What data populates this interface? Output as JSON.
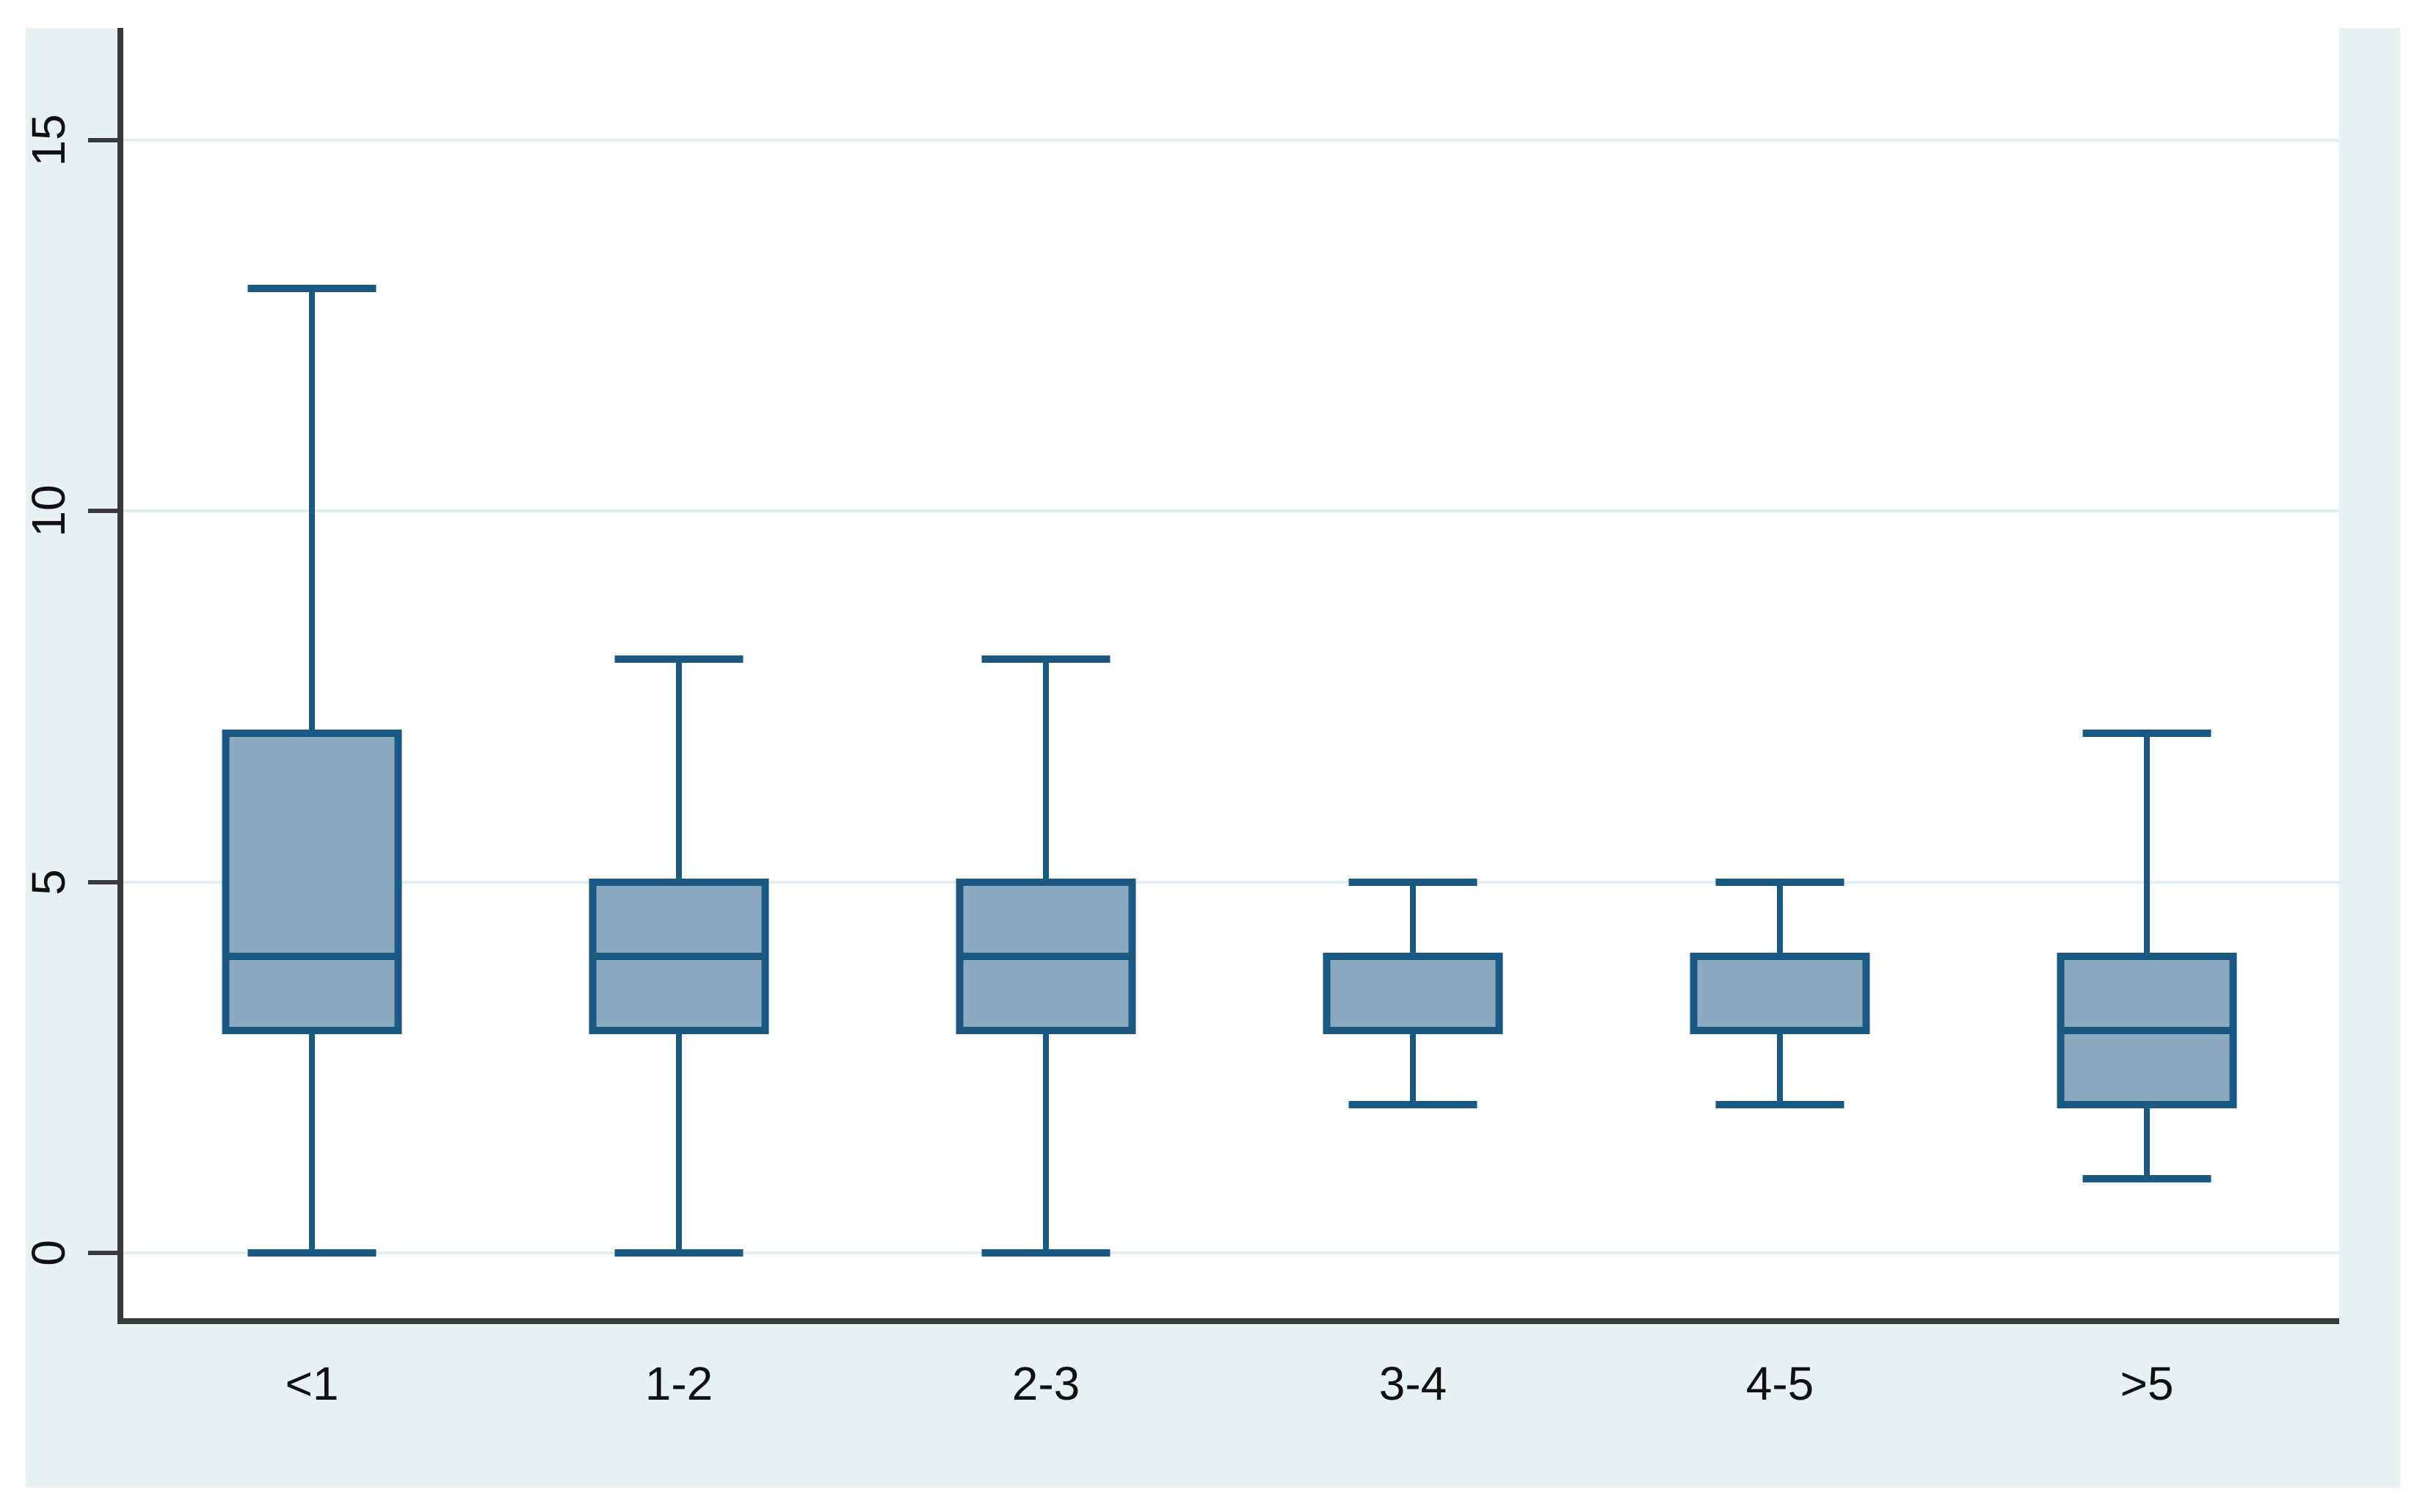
{
  "chart_data": {
    "type": "box",
    "title": "",
    "xlabel": "",
    "ylabel": "",
    "categories": [
      "<1",
      "1-2",
      "2-3",
      "3-4",
      "4-5",
      ">5"
    ],
    "y_ticks": [
      "0",
      "5",
      "10",
      "15"
    ],
    "y_tick_values": [
      0,
      5,
      10,
      15
    ],
    "ylim": [
      -0.88,
      16.51
    ],
    "grid": true,
    "legend": false,
    "boxes": [
      {
        "category": "<1",
        "whisker_low": 0,
        "q1": 3,
        "median": 4,
        "q3": 7,
        "whisker_high": 13
      },
      {
        "category": "1-2",
        "whisker_low": 0,
        "q1": 3,
        "median": 4,
        "q3": 5,
        "whisker_high": 8
      },
      {
        "category": "2-3",
        "whisker_low": 0,
        "q1": 3,
        "median": 4,
        "q3": 5,
        "whisker_high": 8
      },
      {
        "category": "3-4",
        "whisker_low": 2,
        "q1": 3,
        "median": 3,
        "q3": 4,
        "whisker_high": 5
      },
      {
        "category": "4-5",
        "whisker_low": 2,
        "q1": 3,
        "median": 3,
        "q3": 4,
        "whisker_high": 5
      },
      {
        "category": ">5",
        "whisker_low": 1,
        "q1": 2,
        "median": 3,
        "q3": 4,
        "whisker_high": 7
      }
    ],
    "colors": {
      "graph_background": "#e8f1f1",
      "plot_background": "#ffffff",
      "gridline": "#e2eef2",
      "axis": "#3a3a3a",
      "tick": "#3a3a3a",
      "text": "#101010",
      "box_fill": "#8ba8bf",
      "box_line": "#1a5a82"
    }
  }
}
